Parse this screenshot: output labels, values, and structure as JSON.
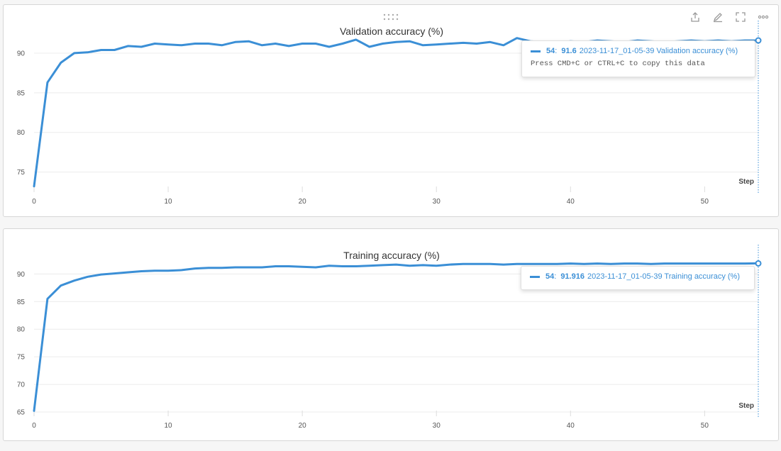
{
  "toolbar": {
    "icons": [
      "share-icon",
      "edit-icon",
      "fullscreen-icon",
      "more-icon"
    ]
  },
  "colors": {
    "series": "#3b8fd6"
  },
  "tooltips": [
    {
      "step": "54",
      "value": "91.6",
      "run_name": "2023-11-17_01-05-39 Validation accuracy (%)",
      "copy_hint": "Press CMD+C or CTRL+C to copy this data"
    },
    {
      "step": "54",
      "value": "91.916",
      "run_name": "2023-11-17_01-05-39 Training accuracy (%)"
    }
  ],
  "chart_data": [
    {
      "type": "line",
      "title": "Validation accuracy (%)",
      "xlabel": "Step",
      "ylabel": "",
      "xlim": [
        0,
        54
      ],
      "ylim": [
        73,
        92.5
      ],
      "xticks": [
        0,
        10,
        20,
        30,
        40,
        50
      ],
      "yticks": [
        75,
        80,
        85,
        90
      ],
      "grid": true,
      "series": [
        {
          "x": [
            0,
            1,
            2,
            3,
            4,
            5,
            6,
            7,
            8,
            9,
            10,
            11,
            12,
            13,
            14,
            15,
            16,
            17,
            18,
            19,
            20,
            21,
            22,
            23,
            24,
            25,
            26,
            27,
            28,
            29,
            30,
            31,
            32,
            33,
            34,
            35,
            36,
            37,
            38,
            39,
            40,
            41,
            42,
            43,
            44,
            45,
            46,
            47,
            48,
            49,
            50,
            51,
            52,
            53,
            54
          ],
          "values": [
            73.2,
            86.3,
            88.8,
            90.0,
            90.1,
            90.4,
            90.4,
            90.9,
            90.8,
            91.2,
            91.1,
            91.0,
            91.2,
            91.2,
            91.0,
            91.4,
            91.5,
            91.0,
            91.2,
            90.9,
            91.2,
            91.2,
            90.8,
            91.2,
            91.7,
            90.8,
            91.2,
            91.4,
            91.5,
            91.0,
            91.1,
            91.2,
            91.3,
            91.2,
            91.4,
            91.0,
            91.9,
            91.5,
            91.4,
            91.3,
            91.5,
            91.4,
            91.6,
            91.5,
            91.4,
            91.6,
            91.5,
            91.4,
            91.5,
            91.6,
            91.5,
            91.6,
            91.5,
            91.6,
            91.6
          ]
        }
      ]
    },
    {
      "type": "line",
      "title": "Training accuracy (%)",
      "xlabel": "Step",
      "ylabel": "",
      "xlim": [
        0,
        54
      ],
      "ylim": [
        65,
        93
      ],
      "xticks": [
        0,
        10,
        20,
        30,
        40,
        50
      ],
      "yticks": [
        65,
        70,
        75,
        80,
        85,
        90
      ],
      "grid": true,
      "series": [
        {
          "x": [
            0,
            1,
            2,
            3,
            4,
            5,
            6,
            7,
            8,
            9,
            10,
            11,
            12,
            13,
            14,
            15,
            16,
            17,
            18,
            19,
            20,
            21,
            22,
            23,
            24,
            25,
            26,
            27,
            28,
            29,
            30,
            31,
            32,
            33,
            34,
            35,
            36,
            37,
            38,
            39,
            40,
            41,
            42,
            43,
            44,
            45,
            46,
            47,
            48,
            49,
            50,
            51,
            52,
            53,
            54
          ],
          "values": [
            65.2,
            85.5,
            87.9,
            88.8,
            89.5,
            89.9,
            90.1,
            90.3,
            90.5,
            90.6,
            90.6,
            90.7,
            91.0,
            91.1,
            91.1,
            91.2,
            91.2,
            91.2,
            91.4,
            91.4,
            91.3,
            91.2,
            91.5,
            91.4,
            91.4,
            91.5,
            91.6,
            91.7,
            91.5,
            91.6,
            91.5,
            91.7,
            91.8,
            91.8,
            91.8,
            91.7,
            91.8,
            91.8,
            91.8,
            91.8,
            91.9,
            91.8,
            91.9,
            91.8,
            91.9,
            91.9,
            91.8,
            91.9,
            91.9,
            91.9,
            91.9,
            91.9,
            91.9,
            91.9,
            91.916
          ]
        }
      ]
    }
  ]
}
